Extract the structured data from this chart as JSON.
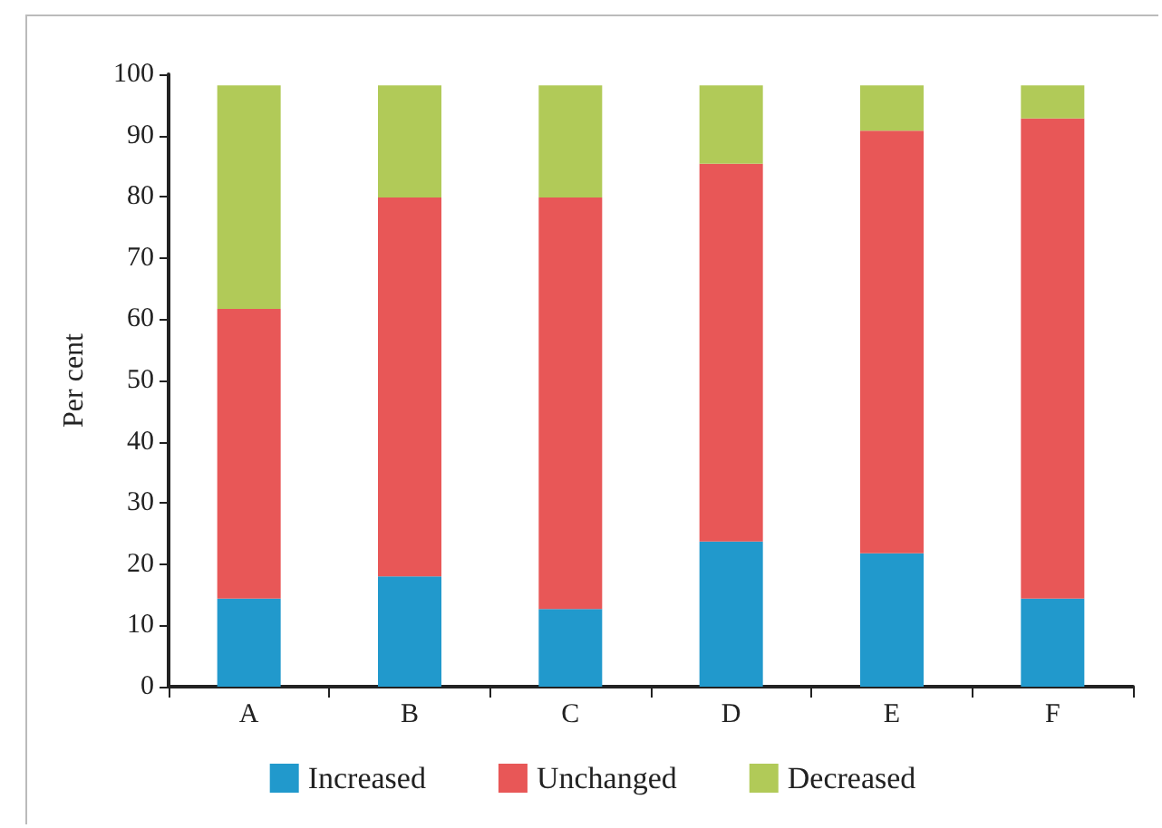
{
  "chart_data": {
    "type": "bar",
    "ylabel": "Per cent",
    "stacked": true,
    "categories": [
      "A",
      "B",
      "C",
      "D",
      "E",
      "F"
    ],
    "series": [
      {
        "name": "Increased",
        "color": "#2199cc",
        "values": [
          14.4,
          18.0,
          12.7,
          23.7,
          21.8,
          14.4
        ]
      },
      {
        "name": "Unchanged",
        "color": "#e85757",
        "values": [
          47.3,
          61.9,
          67.2,
          61.7,
          69.0,
          78.4
        ]
      },
      {
        "name": "Decreased",
        "color": "#b1ca58",
        "values": [
          36.5,
          18.3,
          18.3,
          12.8,
          7.4,
          5.4
        ]
      }
    ],
    "ylim": [
      0,
      100
    ],
    "yticks": [
      0,
      10,
      20,
      30,
      40,
      50,
      60,
      70,
      80,
      90,
      100
    ],
    "grid": false,
    "legend": "bottom"
  }
}
